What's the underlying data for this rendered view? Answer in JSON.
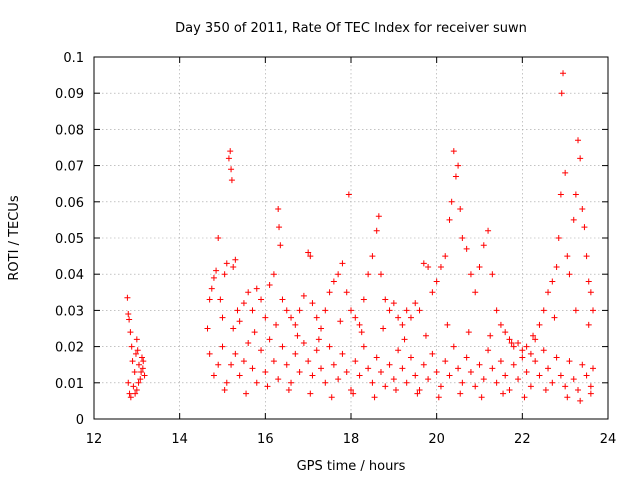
{
  "chart_data": {
    "type": "scatter",
    "title": "Day 350 of 2011, Rate Of TEC Index for receiver suwn",
    "xlabel": "GPS time / hours",
    "ylabel": "ROTI / TECUs",
    "xlim": [
      12,
      24
    ],
    "ylim": [
      0,
      0.1
    ],
    "xticks": [
      12,
      14,
      16,
      18,
      20,
      22,
      24
    ],
    "xtick_labels": [
      "12",
      "14",
      "16",
      "18",
      "20",
      "22",
      "24"
    ],
    "yticks": [
      0,
      0.01,
      0.02,
      0.03,
      0.04,
      0.05,
      0.06,
      0.07,
      0.08,
      0.09,
      0.1
    ],
    "ytick_labels": [
      "0",
      "0.01",
      "0.02",
      "0.03",
      "0.04",
      "0.05",
      "0.06",
      "0.07",
      "0.08",
      "0.09",
      "0.1"
    ],
    "grid": true,
    "marker": "+",
    "color": "#ff0000",
    "series": [
      {
        "values": [
          [
            12.78,
            0.0335
          ],
          [
            12.8,
            0.029
          ],
          [
            12.82,
            0.0275
          ],
          [
            12.85,
            0.024
          ],
          [
            12.88,
            0.02
          ],
          [
            12.9,
            0.016
          ],
          [
            12.8,
            0.01
          ],
          [
            12.83,
            0.007
          ],
          [
            12.86,
            0.006
          ],
          [
            12.92,
            0.009
          ],
          [
            12.95,
            0.013
          ],
          [
            12.98,
            0.018
          ],
          [
            13.0,
            0.022
          ],
          [
            13.02,
            0.019
          ],
          [
            13.05,
            0.015
          ],
          [
            13.08,
            0.011
          ],
          [
            13.1,
            0.013
          ],
          [
            13.12,
            0.017
          ],
          [
            13.15,
            0.016
          ],
          [
            13.18,
            0.012
          ],
          [
            13.0,
            0.008
          ],
          [
            12.96,
            0.007
          ],
          [
            13.04,
            0.01
          ],
          [
            13.14,
            0.014
          ],
          [
            14.65,
            0.025
          ],
          [
            14.7,
            0.033
          ],
          [
            14.75,
            0.036
          ],
          [
            14.8,
            0.039
          ],
          [
            14.85,
            0.041
          ],
          [
            14.9,
            0.05
          ],
          [
            14.95,
            0.033
          ],
          [
            15.0,
            0.028
          ],
          [
            15.05,
            0.04
          ],
          [
            15.1,
            0.043
          ],
          [
            15.15,
            0.072
          ],
          [
            15.18,
            0.074
          ],
          [
            15.2,
            0.069
          ],
          [
            15.22,
            0.066
          ],
          [
            15.25,
            0.042
          ],
          [
            15.3,
            0.044
          ],
          [
            15.35,
            0.03
          ],
          [
            15.4,
            0.027
          ],
          [
            15.5,
            0.032
          ],
          [
            15.6,
            0.035
          ],
          [
            15.7,
            0.03
          ],
          [
            15.8,
            0.036
          ],
          [
            15.9,
            0.033
          ],
          [
            16.0,
            0.028
          ],
          [
            16.1,
            0.037
          ],
          [
            16.2,
            0.04
          ],
          [
            16.3,
            0.058
          ],
          [
            16.32,
            0.053
          ],
          [
            16.35,
            0.048
          ],
          [
            16.4,
            0.033
          ],
          [
            16.5,
            0.03
          ],
          [
            16.6,
            0.028
          ],
          [
            16.7,
            0.026
          ],
          [
            16.8,
            0.03
          ],
          [
            16.9,
            0.034
          ],
          [
            17.0,
            0.046
          ],
          [
            17.05,
            0.045
          ],
          [
            17.1,
            0.032
          ],
          [
            17.2,
            0.028
          ],
          [
            17.3,
            0.025
          ],
          [
            17.4,
            0.03
          ],
          [
            17.5,
            0.035
          ],
          [
            17.6,
            0.038
          ],
          [
            17.7,
            0.04
          ],
          [
            17.8,
            0.043
          ],
          [
            17.9,
            0.035
          ],
          [
            17.95,
            0.062
          ],
          [
            18.0,
            0.03
          ],
          [
            18.1,
            0.028
          ],
          [
            18.2,
            0.026
          ],
          [
            18.3,
            0.033
          ],
          [
            18.4,
            0.04
          ],
          [
            18.5,
            0.045
          ],
          [
            18.6,
            0.052
          ],
          [
            18.65,
            0.056
          ],
          [
            18.7,
            0.04
          ],
          [
            18.8,
            0.033
          ],
          [
            18.9,
            0.03
          ],
          [
            19.0,
            0.032
          ],
          [
            19.1,
            0.028
          ],
          [
            19.2,
            0.026
          ],
          [
            19.3,
            0.03
          ],
          [
            19.4,
            0.028
          ],
          [
            19.5,
            0.032
          ],
          [
            19.6,
            0.03
          ],
          [
            19.7,
            0.043
          ],
          [
            19.8,
            0.042
          ],
          [
            19.9,
            0.035
          ],
          [
            20.0,
            0.038
          ],
          [
            20.1,
            0.042
          ],
          [
            20.2,
            0.045
          ],
          [
            20.3,
            0.055
          ],
          [
            20.35,
            0.06
          ],
          [
            20.4,
            0.074
          ],
          [
            20.45,
            0.067
          ],
          [
            20.5,
            0.07
          ],
          [
            20.55,
            0.058
          ],
          [
            20.6,
            0.05
          ],
          [
            20.7,
            0.047
          ],
          [
            20.8,
            0.04
          ],
          [
            20.9,
            0.035
          ],
          [
            21.0,
            0.042
          ],
          [
            21.1,
            0.048
          ],
          [
            21.2,
            0.052
          ],
          [
            21.3,
            0.04
          ],
          [
            21.4,
            0.03
          ],
          [
            21.5,
            0.026
          ],
          [
            21.6,
            0.024
          ],
          [
            21.7,
            0.022
          ],
          [
            21.8,
            0.02
          ],
          [
            21.9,
            0.021
          ],
          [
            22.0,
            0.019
          ],
          [
            22.1,
            0.02
          ],
          [
            22.2,
            0.018
          ],
          [
            22.3,
            0.022
          ],
          [
            22.4,
            0.026
          ],
          [
            22.5,
            0.03
          ],
          [
            22.6,
            0.035
          ],
          [
            22.7,
            0.038
          ],
          [
            22.8,
            0.042
          ],
          [
            22.85,
            0.05
          ],
          [
            22.9,
            0.062
          ],
          [
            22.92,
            0.09
          ],
          [
            22.95,
            0.0955
          ],
          [
            23.0,
            0.068
          ],
          [
            23.05,
            0.045
          ],
          [
            23.1,
            0.04
          ],
          [
            23.2,
            0.055
          ],
          [
            23.25,
            0.062
          ],
          [
            23.3,
            0.077
          ],
          [
            23.35,
            0.072
          ],
          [
            23.4,
            0.058
          ],
          [
            23.45,
            0.053
          ],
          [
            23.5,
            0.045
          ],
          [
            23.55,
            0.038
          ],
          [
            23.6,
            0.035
          ],
          [
            23.65,
            0.03
          ],
          [
            14.7,
            0.018
          ],
          [
            14.8,
            0.012
          ],
          [
            14.9,
            0.015
          ],
          [
            15.0,
            0.02
          ],
          [
            15.1,
            0.01
          ],
          [
            15.2,
            0.015
          ],
          [
            15.3,
            0.018
          ],
          [
            15.4,
            0.012
          ],
          [
            15.5,
            0.016
          ],
          [
            15.6,
            0.021
          ],
          [
            15.7,
            0.014
          ],
          [
            15.8,
            0.01
          ],
          [
            15.9,
            0.019
          ],
          [
            16.0,
            0.013
          ],
          [
            16.1,
            0.022
          ],
          [
            16.2,
            0.016
          ],
          [
            16.3,
            0.011
          ],
          [
            16.4,
            0.02
          ],
          [
            16.5,
            0.015
          ],
          [
            16.6,
            0.01
          ],
          [
            16.7,
            0.018
          ],
          [
            16.8,
            0.013
          ],
          [
            16.9,
            0.021
          ],
          [
            17.0,
            0.016
          ],
          [
            17.1,
            0.012
          ],
          [
            17.2,
            0.019
          ],
          [
            17.3,
            0.014
          ],
          [
            17.4,
            0.01
          ],
          [
            17.5,
            0.02
          ],
          [
            17.6,
            0.015
          ],
          [
            17.7,
            0.011
          ],
          [
            17.8,
            0.018
          ],
          [
            17.9,
            0.013
          ],
          [
            18.0,
            0.008
          ],
          [
            18.1,
            0.016
          ],
          [
            18.2,
            0.012
          ],
          [
            18.3,
            0.02
          ],
          [
            18.4,
            0.014
          ],
          [
            18.5,
            0.01
          ],
          [
            18.6,
            0.017
          ],
          [
            18.7,
            0.013
          ],
          [
            18.8,
            0.009
          ],
          [
            18.9,
            0.015
          ],
          [
            19.0,
            0.011
          ],
          [
            19.1,
            0.019
          ],
          [
            19.2,
            0.014
          ],
          [
            19.3,
            0.01
          ],
          [
            19.4,
            0.017
          ],
          [
            19.5,
            0.012
          ],
          [
            19.6,
            0.008
          ],
          [
            19.7,
            0.015
          ],
          [
            19.8,
            0.011
          ],
          [
            19.9,
            0.018
          ],
          [
            20.0,
            0.013
          ],
          [
            20.1,
            0.009
          ],
          [
            20.2,
            0.016
          ],
          [
            20.3,
            0.012
          ],
          [
            20.4,
            0.02
          ],
          [
            20.5,
            0.014
          ],
          [
            20.6,
            0.01
          ],
          [
            20.7,
            0.017
          ],
          [
            20.8,
            0.013
          ],
          [
            20.9,
            0.009
          ],
          [
            21.0,
            0.015
          ],
          [
            21.1,
            0.011
          ],
          [
            21.2,
            0.019
          ],
          [
            21.3,
            0.014
          ],
          [
            21.4,
            0.01
          ],
          [
            21.5,
            0.016
          ],
          [
            21.6,
            0.012
          ],
          [
            21.7,
            0.008
          ],
          [
            21.8,
            0.015
          ],
          [
            21.9,
            0.011
          ],
          [
            22.0,
            0.017
          ],
          [
            22.1,
            0.013
          ],
          [
            22.2,
            0.009
          ],
          [
            22.3,
            0.016
          ],
          [
            22.4,
            0.012
          ],
          [
            22.5,
            0.019
          ],
          [
            22.6,
            0.014
          ],
          [
            22.7,
            0.01
          ],
          [
            22.8,
            0.017
          ],
          [
            22.9,
            0.012
          ],
          [
            23.0,
            0.009
          ],
          [
            23.1,
            0.016
          ],
          [
            23.2,
            0.011
          ],
          [
            23.3,
            0.008
          ],
          [
            23.4,
            0.015
          ],
          [
            23.5,
            0.012
          ],
          [
            23.6,
            0.009
          ],
          [
            23.65,
            0.014
          ],
          [
            15.05,
            0.008
          ],
          [
            15.55,
            0.007
          ],
          [
            16.05,
            0.009
          ],
          [
            16.55,
            0.008
          ],
          [
            17.05,
            0.007
          ],
          [
            17.55,
            0.006
          ],
          [
            18.05,
            0.007
          ],
          [
            18.55,
            0.006
          ],
          [
            19.05,
            0.008
          ],
          [
            19.55,
            0.007
          ],
          [
            20.05,
            0.006
          ],
          [
            20.55,
            0.007
          ],
          [
            21.05,
            0.006
          ],
          [
            21.55,
            0.007
          ],
          [
            22.05,
            0.006
          ],
          [
            22.55,
            0.008
          ],
          [
            23.05,
            0.006
          ],
          [
            23.35,
            0.005
          ],
          [
            23.6,
            0.007
          ],
          [
            15.25,
            0.025
          ],
          [
            15.75,
            0.024
          ],
          [
            16.25,
            0.026
          ],
          [
            16.75,
            0.023
          ],
          [
            17.25,
            0.022
          ],
          [
            17.75,
            0.027
          ],
          [
            18.25,
            0.024
          ],
          [
            18.75,
            0.025
          ],
          [
            19.25,
            0.022
          ],
          [
            19.75,
            0.023
          ],
          [
            20.25,
            0.026
          ],
          [
            20.75,
            0.024
          ],
          [
            21.25,
            0.023
          ],
          [
            21.75,
            0.021
          ],
          [
            22.25,
            0.023
          ],
          [
            22.75,
            0.028
          ],
          [
            23.25,
            0.03
          ],
          [
            23.55,
            0.026
          ]
        ]
      }
    ]
  }
}
